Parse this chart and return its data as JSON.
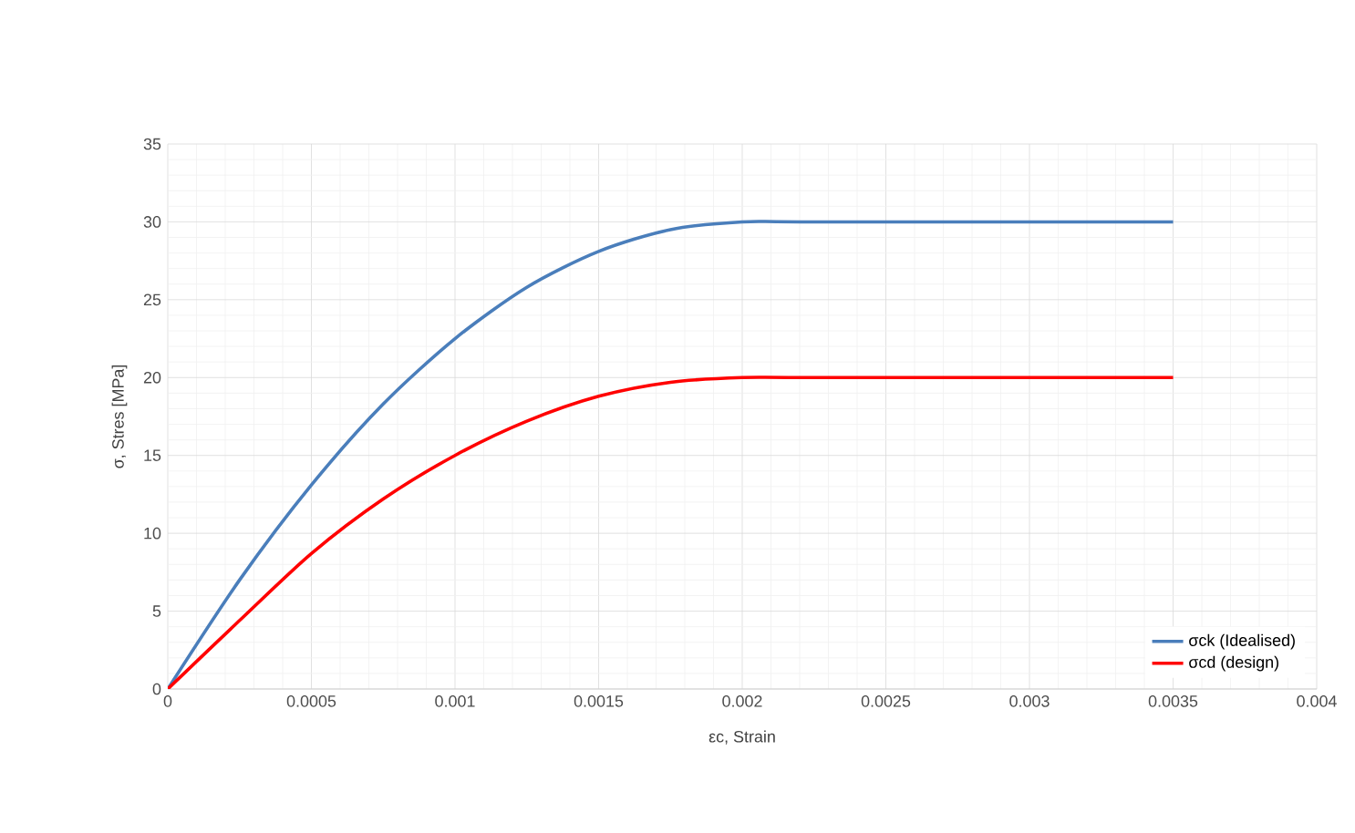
{
  "chart_data": {
    "type": "line",
    "xlabel": "εc, Strain",
    "ylabel": "σ, Stres [MPa]",
    "xlim": [
      0,
      0.004
    ],
    "xticks": [
      0,
      0.0005,
      0.001,
      0.0015,
      0.002,
      0.0025,
      0.003,
      0.0035,
      0.004
    ],
    "ylim": [
      0,
      35
    ],
    "yticks": [
      0,
      5,
      10,
      15,
      20,
      25,
      30,
      35
    ],
    "grid": true,
    "legend": "bottom right",
    "marker": "none",
    "line_style": "solid",
    "series": [
      {
        "name": "σck (Idealised)",
        "color": "#4a7ebb",
        "x": [
          0,
          0.00025,
          0.0005,
          0.00075,
          0.001,
          0.00125,
          0.0015,
          0.00175,
          0.002,
          0.00225,
          0.0035
        ],
        "values": [
          0,
          7,
          13.1,
          18.3,
          22.5,
          25.8,
          28.1,
          29.5,
          30,
          30,
          30
        ]
      },
      {
        "name": "σcd (design)",
        "color": "#ff0000",
        "x": [
          0,
          0.00025,
          0.0005,
          0.00075,
          0.001,
          0.00125,
          0.0015,
          0.00175,
          0.002,
          0.00225,
          0.0035
        ],
        "values": [
          0,
          4.4,
          8.7,
          12.2,
          15,
          17.2,
          18.8,
          19.7,
          20,
          20,
          20
        ]
      }
    ]
  }
}
